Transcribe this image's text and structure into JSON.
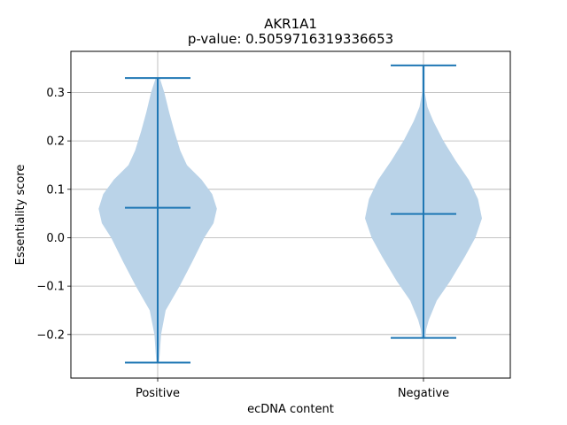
{
  "chart_data": {
    "type": "violin",
    "title": "AKR1A1",
    "subtitle": "p-value: 0.5059716319336653",
    "xlabel": "ecDNA content",
    "ylabel": "Essentiality score",
    "ylim": [
      -0.29,
      0.385
    ],
    "yticks": [
      -0.2,
      -0.1,
      0.0,
      0.1,
      0.2,
      0.3
    ],
    "ytick_labels": [
      "−0.2",
      "−0.1",
      "0.0",
      "0.1",
      "0.2",
      "0.3"
    ],
    "grid": true,
    "categories": [
      "Positive",
      "Negative"
    ],
    "violins": [
      {
        "category": "Positive",
        "min": -0.258,
        "max": 0.33,
        "median": 0.062,
        "profile": [
          [
            -0.258,
            0.02
          ],
          [
            -0.24,
            0.03
          ],
          [
            -0.2,
            0.05
          ],
          [
            -0.15,
            0.12
          ],
          [
            -0.1,
            0.33
          ],
          [
            -0.05,
            0.52
          ],
          [
            0.0,
            0.7
          ],
          [
            0.03,
            0.84
          ],
          [
            0.06,
            0.89
          ],
          [
            0.09,
            0.82
          ],
          [
            0.12,
            0.66
          ],
          [
            0.15,
            0.44
          ],
          [
            0.18,
            0.34
          ],
          [
            0.22,
            0.25
          ],
          [
            0.26,
            0.17
          ],
          [
            0.3,
            0.1
          ],
          [
            0.33,
            0.03
          ]
        ]
      },
      {
        "category": "Negative",
        "min": -0.207,
        "max": 0.356,
        "median": 0.049,
        "profile": [
          [
            -0.207,
            0.03
          ],
          [
            -0.19,
            0.04
          ],
          [
            -0.17,
            0.08
          ],
          [
            -0.13,
            0.2
          ],
          [
            -0.09,
            0.4
          ],
          [
            -0.04,
            0.62
          ],
          [
            0.0,
            0.78
          ],
          [
            0.04,
            0.88
          ],
          [
            0.08,
            0.82
          ],
          [
            0.12,
            0.68
          ],
          [
            0.16,
            0.48
          ],
          [
            0.2,
            0.3
          ],
          [
            0.24,
            0.15
          ],
          [
            0.27,
            0.06
          ],
          [
            0.3,
            0.02
          ],
          [
            0.33,
            0.02
          ],
          [
            0.356,
            0.02
          ]
        ]
      }
    ],
    "colors": {
      "body": "#bad3e8",
      "line": "#1f77b4",
      "grid": "#b0b0b0",
      "axis": "#000000"
    }
  }
}
